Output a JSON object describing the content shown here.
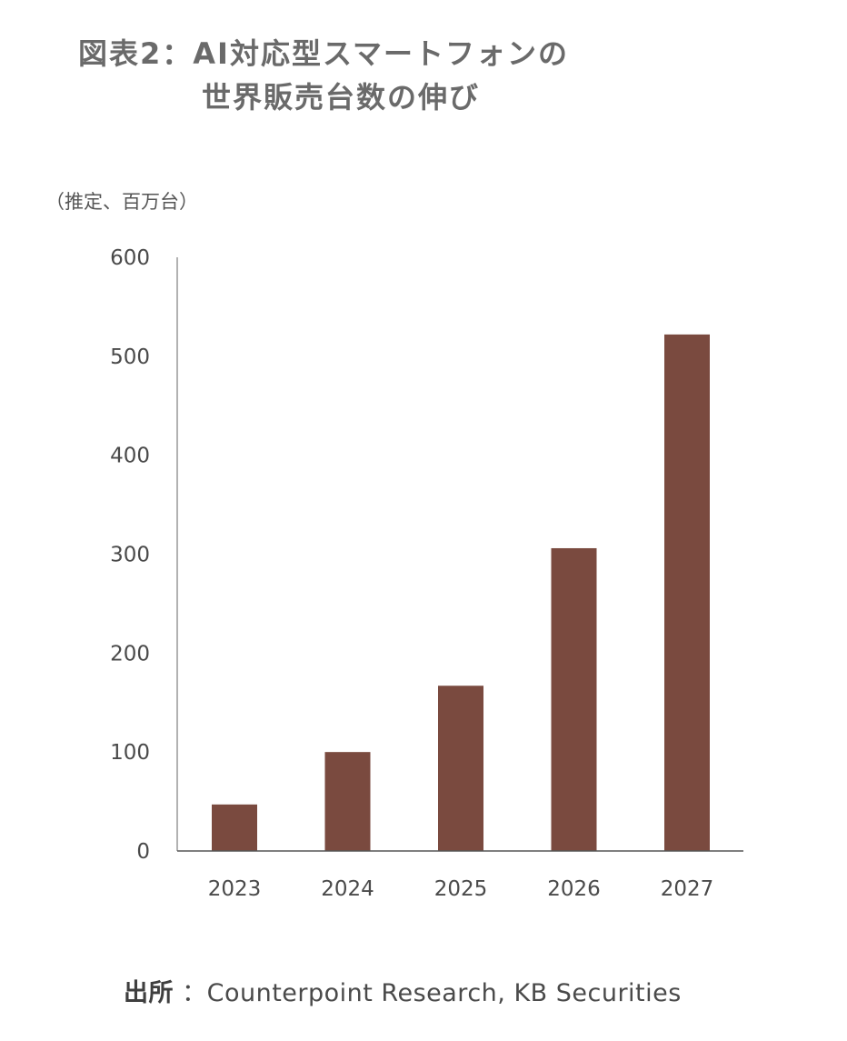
{
  "title_line1": "図表2：AI対応型スマートフォンの",
  "title_line2": "世界販売台数の伸び",
  "unit_label": "（推定、百万台）",
  "source": {
    "label": "出所",
    "text": "：Counterpoint Research, KB Securities"
  },
  "colors": {
    "bar": "#7a4a3f",
    "axis": "#999999"
  },
  "chart_data": {
    "type": "bar",
    "categories": [
      "2023",
      "2024",
      "2025",
      "2026",
      "2027"
    ],
    "values": [
      47,
      100,
      167,
      306,
      522
    ],
    "ylim": [
      0,
      600
    ],
    "yticks": [
      0,
      100,
      200,
      300,
      400,
      500,
      600
    ],
    "grid": false,
    "legend": "none"
  }
}
